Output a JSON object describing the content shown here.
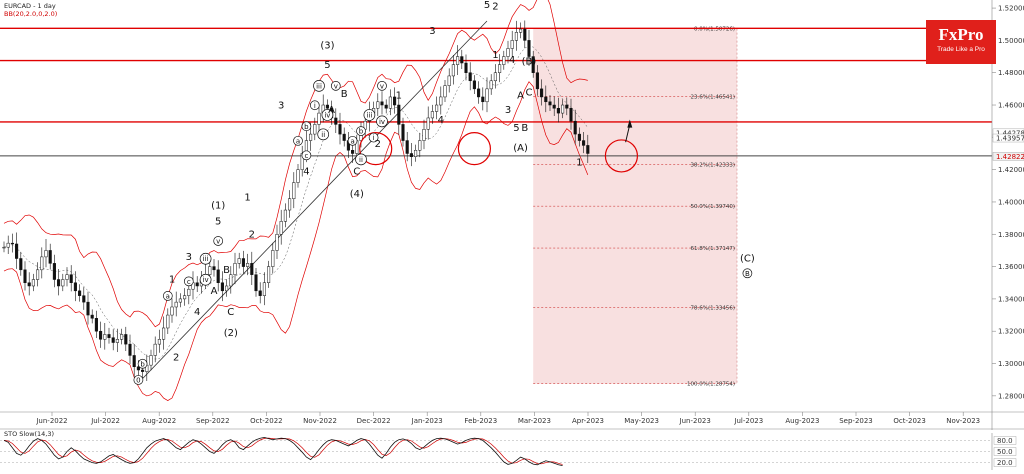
{
  "chart_data": {
    "type": "candlestick",
    "symbol_label": "EURCAD - 1 day",
    "indicator_label": "BB(20,2.0,0,2.0)",
    "y_range": [
      1.27,
      1.525
    ],
    "y_ticks": [
      "1.52000",
      "1.50000",
      "1.48000",
      "1.46000",
      "1.44000",
      "1.42000",
      "1.40000",
      "1.38000",
      "1.36000",
      "1.34000",
      "1.32000",
      "1.30000",
      "1.28000"
    ],
    "x_labels": [
      "Jun-2022",
      "Jul-2022",
      "Aug-2022",
      "Sep-2022",
      "Oct-2022",
      "Nov-2022",
      "Dec-2022",
      "Jan-2023",
      "Feb-2023",
      "Mar-2023",
      "Apr-2023",
      "May-2023",
      "Jun-2023",
      "Jul-2023",
      "Aug-2023",
      "Sep-2023",
      "Oct-2023",
      "Nov-2023"
    ],
    "price_flags": [
      {
        "text": "1.44278",
        "y": 1.44278,
        "bg": "#ffffff",
        "fg": "#333333"
      },
      {
        "text": "1.43957",
        "y": 1.43957,
        "bg": "#ffffff",
        "fg": "#333333"
      },
      {
        "text": "1.42822",
        "y": 1.42822,
        "bg": "#f0f0f0",
        "fg": "#d00000"
      }
    ],
    "resistance_levels": [
      1.5075,
      1.4875,
      1.4495
    ],
    "support_level": 1.4285,
    "price_series": [
      1.372,
      1.3745,
      1.374,
      1.365,
      1.358,
      1.35,
      1.348,
      1.352,
      1.358,
      1.366,
      1.37,
      1.362,
      1.352,
      1.348,
      1.352,
      1.355,
      1.35,
      1.345,
      1.342,
      1.338,
      1.33,
      1.328,
      1.32,
      1.315,
      1.318,
      1.316,
      1.313,
      1.315,
      1.318,
      1.312,
      1.305,
      1.298,
      1.296,
      1.295,
      1.299,
      1.305,
      1.312,
      1.315,
      1.322,
      1.33,
      1.335,
      1.338,
      1.34,
      1.342,
      1.346,
      1.35,
      1.348,
      1.352,
      1.355,
      1.36,
      1.358,
      1.35,
      1.345,
      1.348,
      1.355,
      1.362,
      1.365,
      1.36,
      1.362,
      1.355,
      1.345,
      1.342,
      1.35,
      1.36,
      1.37,
      1.38,
      1.388,
      1.395,
      1.402,
      1.412,
      1.42,
      1.43,
      1.438,
      1.442,
      1.448,
      1.455,
      1.46,
      1.458,
      1.452,
      1.448,
      1.442,
      1.438,
      1.432,
      1.43,
      1.438,
      1.445,
      1.45,
      1.455,
      1.458,
      1.462,
      1.46,
      1.458,
      1.465,
      1.46,
      1.448,
      1.438,
      1.43,
      1.428,
      1.432,
      1.438,
      1.445,
      1.452,
      1.456,
      1.46,
      1.465,
      1.472,
      1.478,
      1.485,
      1.49,
      1.486,
      1.48,
      1.475,
      1.47,
      1.465,
      1.462,
      1.47,
      1.475,
      1.48,
      1.485,
      1.49,
      1.495,
      1.5,
      1.505,
      1.507,
      1.5,
      1.49,
      1.48,
      1.47,
      1.465,
      1.462,
      1.46,
      1.458,
      1.455,
      1.46,
      1.458,
      1.45,
      1.442,
      1.438,
      1.435,
      1.43
    ],
    "fibonacci": [
      {
        "label": "0.0%(1.50726)",
        "value": 1.50726
      },
      {
        "label": "23.6%(1.46541)",
        "value": 1.46541
      },
      {
        "label": "38.2%(1.42333)",
        "value": 1.42333
      },
      {
        "label": "50.0%(1.39740)",
        "value": 1.3974
      },
      {
        "label": "61.8%(1.37147)",
        "value": 1.37147
      },
      {
        "label": "78.6%(1.33456)",
        "value": 1.33456
      },
      {
        "label": "100.0%(1.28754)",
        "value": 1.28754
      }
    ],
    "wave_labels": [
      {
        "text": "0",
        "idx": 32,
        "y": 1.288,
        "circled": true
      },
      {
        "text": "a",
        "idx": 39,
        "y": 1.34,
        "circled": true
      },
      {
        "text": "b",
        "idx": 33,
        "y": 1.298,
        "circled": true
      },
      {
        "text": "1",
        "idx": 40,
        "y": 1.35
      },
      {
        "text": "2",
        "idx": 41,
        "y": 1.302
      },
      {
        "text": "c",
        "idx": 44,
        "y": 1.349,
        "circled": true
      },
      {
        "text": "3",
        "idx": 44,
        "y": 1.364
      },
      {
        "text": "4",
        "idx": 46,
        "y": 1.33
      },
      {
        "text": "iii",
        "idx": 48,
        "y": 1.363,
        "circled": true
      },
      {
        "text": "B",
        "idx": 53,
        "y": 1.356
      },
      {
        "text": "A",
        "idx": 50,
        "y": 1.343
      },
      {
        "text": "iv",
        "idx": 48,
        "y": 1.35,
        "circled": true
      },
      {
        "text": "v",
        "idx": 51,
        "y": 1.374,
        "circled": true
      },
      {
        "text": "5",
        "idx": 51,
        "y": 1.386
      },
      {
        "text": "(1)",
        "idx": 51,
        "y": 1.396
      },
      {
        "text": "C",
        "idx": 54,
        "y": 1.33
      },
      {
        "text": "(2)",
        "idx": 54,
        "y": 1.317
      },
      {
        "text": "1",
        "idx": 58,
        "y": 1.401
      },
      {
        "text": "2",
        "idx": 59,
        "y": 1.378
      },
      {
        "text": "3",
        "idx": 66,
        "y": 1.458
      },
      {
        "text": "4",
        "idx": 72,
        "y": 1.417
      },
      {
        "text": "c",
        "idx": 72,
        "y": 1.427,
        "circled": true
      },
      {
        "text": "a",
        "idx": 70,
        "y": 1.436,
        "circled": true
      },
      {
        "text": "b",
        "idx": 72,
        "y": 1.445,
        "circled": true
      },
      {
        "text": "i",
        "idx": 74,
        "y": 1.458,
        "circled": true
      },
      {
        "text": "ii",
        "idx": 76,
        "y": 1.44,
        "circled": true
      },
      {
        "text": "iii",
        "idx": 75,
        "y": 1.47,
        "circled": true
      },
      {
        "text": "iv",
        "idx": 77,
        "y": 1.452,
        "circled": true
      },
      {
        "text": "v",
        "idx": 79,
        "y": 1.47,
        "circled": true
      },
      {
        "text": "5",
        "idx": 77,
        "y": 1.483
      },
      {
        "text": "(3)",
        "idx": 77,
        "y": 1.495
      },
      {
        "text": "B",
        "idx": 81,
        "y": 1.465
      },
      {
        "text": "A",
        "idx": 78,
        "y": 1.455
      },
      {
        "text": "a",
        "idx": 83,
        "y": 1.436,
        "circled": true
      },
      {
        "text": "b",
        "idx": 85,
        "y": 1.442,
        "circled": true
      },
      {
        "text": "ii",
        "idx": 85,
        "y": 1.4245,
        "circled": true
      },
      {
        "text": "C",
        "idx": 84,
        "y": 1.417
      },
      {
        "text": "(4)",
        "idx": 84,
        "y": 1.403
      },
      {
        "text": "i",
        "idx": 88,
        "y": 1.438,
        "circled": true
      },
      {
        "text": "2",
        "idx": 89,
        "y": 1.434
      },
      {
        "text": "iii",
        "idx": 87,
        "y": 1.452,
        "circled": true
      },
      {
        "text": "iv",
        "idx": 90,
        "y": 1.448,
        "circled": true
      },
      {
        "text": "v",
        "idx": 90,
        "y": 1.47,
        "circled": true
      },
      {
        "text": "1",
        "idx": 94,
        "y": 1.464
      },
      {
        "text": "3",
        "idx": 102,
        "y": 1.504
      },
      {
        "text": "4",
        "idx": 104,
        "y": 1.449
      },
      {
        "text": "5",
        "idx": 115,
        "y": 1.52
      },
      {
        "text": "(5)",
        "idx": 115,
        "y": 1.528
      },
      {
        "text": "2",
        "idx": 117,
        "y": 1.519
      },
      {
        "text": "1",
        "idx": 117,
        "y": 1.489
      },
      {
        "text": "4",
        "idx": 121,
        "y": 1.486
      },
      {
        "text": "(B)",
        "idx": 125,
        "y": 1.485
      },
      {
        "text": "A",
        "idx": 123,
        "y": 1.464
      },
      {
        "text": "C",
        "idx": 125,
        "y": 1.466
      },
      {
        "text": "3",
        "idx": 120,
        "y": 1.455
      },
      {
        "text": "5",
        "idx": 122,
        "y": 1.444
      },
      {
        "text": "B",
        "idx": 124,
        "y": 1.444
      },
      {
        "text": "(A)",
        "idx": 123,
        "y": 1.4315
      },
      {
        "text": "1",
        "idx": 137,
        "y": 1.4225
      },
      {
        "text": "(C)",
        "idx": 177,
        "y": 1.363
      },
      {
        "text": "B",
        "idx": 177,
        "y": 1.354,
        "circled": true
      }
    ],
    "sto_label": "STO Slow(14,3)",
    "sto_ticks": [
      "80.0",
      "50.0",
      "20.0"
    ],
    "sto_range": [
      0,
      100
    ],
    "sto_values": [
      80,
      75,
      60,
      45,
      40,
      50,
      65,
      78,
      85,
      80,
      70,
      55,
      40,
      30,
      35,
      50,
      60,
      52,
      40,
      30,
      25,
      20,
      18,
      22,
      30,
      38,
      42,
      35,
      28,
      22,
      18,
      20,
      30,
      45,
      60,
      70,
      78,
      82,
      85,
      80,
      70,
      60,
      55,
      65,
      75,
      82,
      78,
      70,
      60,
      50,
      45,
      55,
      68,
      78,
      82,
      75,
      60,
      55,
      65,
      75,
      82,
      86,
      88,
      85,
      82,
      84,
      86,
      85,
      80,
      72,
      60,
      48,
      35,
      28,
      40,
      55,
      68,
      78,
      82,
      80,
      75,
      70,
      65,
      72,
      80,
      85,
      82,
      70,
      55,
      40,
      32,
      45,
      62,
      75,
      82,
      84,
      80,
      72,
      60,
      55,
      62,
      72,
      80,
      85,
      86,
      84,
      80,
      75,
      70,
      74,
      80,
      84,
      86,
      85,
      80,
      70,
      60,
      48,
      35,
      22,
      15,
      18,
      26,
      35,
      30,
      22,
      16,
      14,
      20,
      25,
      22,
      18,
      14,
      12
    ]
  },
  "logo": {
    "brand": "FxPro",
    "tagline": "Trade Like a Pro",
    "bg": "#e0201b"
  },
  "colors": {
    "up": "#1a9e1a",
    "down": "#d40000",
    "level": "#e00000",
    "band": "#e00000",
    "fib_zone": "#f6d6d6"
  }
}
